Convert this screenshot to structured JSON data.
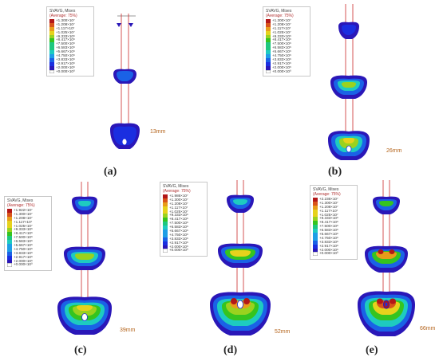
{
  "legend_title": "SVAVG, Mises",
  "legend_subtitle": "(Average: 75%)",
  "colors": [
    "#b31717",
    "#d9531a",
    "#e89c1a",
    "#e6d21c",
    "#9ad21f",
    "#35c41f",
    "#1ec77e",
    "#1ecbc0",
    "#1e9ee6",
    "#1a62e6",
    "#1a2ee0",
    "#2a17b8",
    "#ffffff"
  ],
  "panels": [
    {
      "id": "a",
      "label": "(a)",
      "depth": "13mm",
      "legend_values": [
        "+1.300×10⁷",
        "+1.208×10⁷",
        "+1.117×10⁷",
        "+1.025×10⁷",
        "+9.333×10⁶",
        "+8.417×10⁶",
        "+7.500×10⁶",
        "+6.583×10⁶",
        "+5.667×10⁶",
        "+4.750×10⁶",
        "+3.833×10⁶",
        "+2.917×10⁶",
        "+2.000×10⁶",
        "+0.000×10⁰"
      ]
    },
    {
      "id": "b",
      "label": "(b)",
      "depth": "26mm",
      "legend_values": [
        "+1.300×10⁷",
        "+1.208×10⁷",
        "+1.117×10⁷",
        "+1.025×10⁷",
        "+9.333×10⁶",
        "+8.417×10⁶",
        "+7.500×10⁶",
        "+6.583×10⁶",
        "+5.667×10⁶",
        "+4.750×10⁶",
        "+3.833×10⁶",
        "+2.917×10⁶",
        "+2.000×10⁶",
        "+0.000×10⁰"
      ]
    },
    {
      "id": "c",
      "label": "(c)",
      "depth": "39mm",
      "legend_values": [
        "+1.922×10⁷",
        "+1.300×10⁷",
        "+1.208×10⁷",
        "+1.117×10⁷",
        "+1.025×10⁷",
        "+9.333×10⁶",
        "+8.417×10⁶",
        "+7.500×10⁶",
        "+6.583×10⁶",
        "+5.667×10⁶",
        "+4.750×10⁶",
        "+3.833×10⁶",
        "+2.917×10⁶",
        "+2.000×10⁶",
        "+0.000×10⁰"
      ]
    },
    {
      "id": "d",
      "label": "(d)",
      "depth": "52mm",
      "legend_values": [
        "+1.986×10⁷",
        "+1.300×10⁷",
        "+1.208×10⁷",
        "+1.117×10⁷",
        "+1.025×10⁷",
        "+9.333×10⁶",
        "+8.417×10⁶",
        "+7.500×10⁶",
        "+6.583×10⁶",
        "+5.667×10⁶",
        "+4.750×10⁶",
        "+3.833×10⁶",
        "+2.917×10⁶",
        "+2.000×10⁶",
        "+0.000×10⁰"
      ]
    },
    {
      "id": "e",
      "label": "(e)",
      "depth": "66mm",
      "legend_values": [
        "+2.236×10⁷",
        "+1.300×10⁷",
        "+1.208×10⁷",
        "+1.117×10⁷",
        "+1.025×10⁷",
        "+9.333×10⁶",
        "+8.417×10⁶",
        "+7.500×10⁶",
        "+6.583×10⁶",
        "+5.667×10⁶",
        "+4.750×10⁶",
        "+3.833×10⁶",
        "+2.917×10⁶",
        "+2.000×10⁶",
        "+0.000×10⁰"
      ]
    }
  ]
}
